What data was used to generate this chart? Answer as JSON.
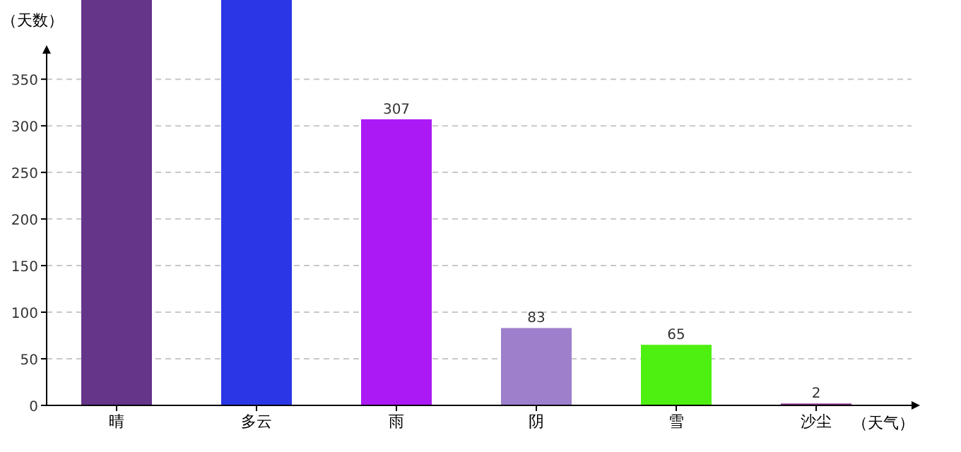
{
  "chart_data": {
    "type": "bar",
    "xlabel": "（天气）",
    "ylabel": "（天数）",
    "categories": [
      "晴",
      "多云",
      "雨",
      "阴",
      "雪",
      "沙尘"
    ],
    "values": [
      435,
      435,
      307,
      83,
      65,
      2
    ],
    "value_labels": [
      null,
      null,
      "307",
      "83",
      "65",
      "2"
    ],
    "colors": [
      "#65358a",
      "#2b36e6",
      "#ab19f5",
      "#9e7fcc",
      "#4ef012",
      "#8c2f8c"
    ],
    "ylim": [
      0,
      435
    ],
    "yticks": [
      0,
      50,
      100,
      150,
      200,
      250,
      300,
      350
    ],
    "grid": "y"
  }
}
